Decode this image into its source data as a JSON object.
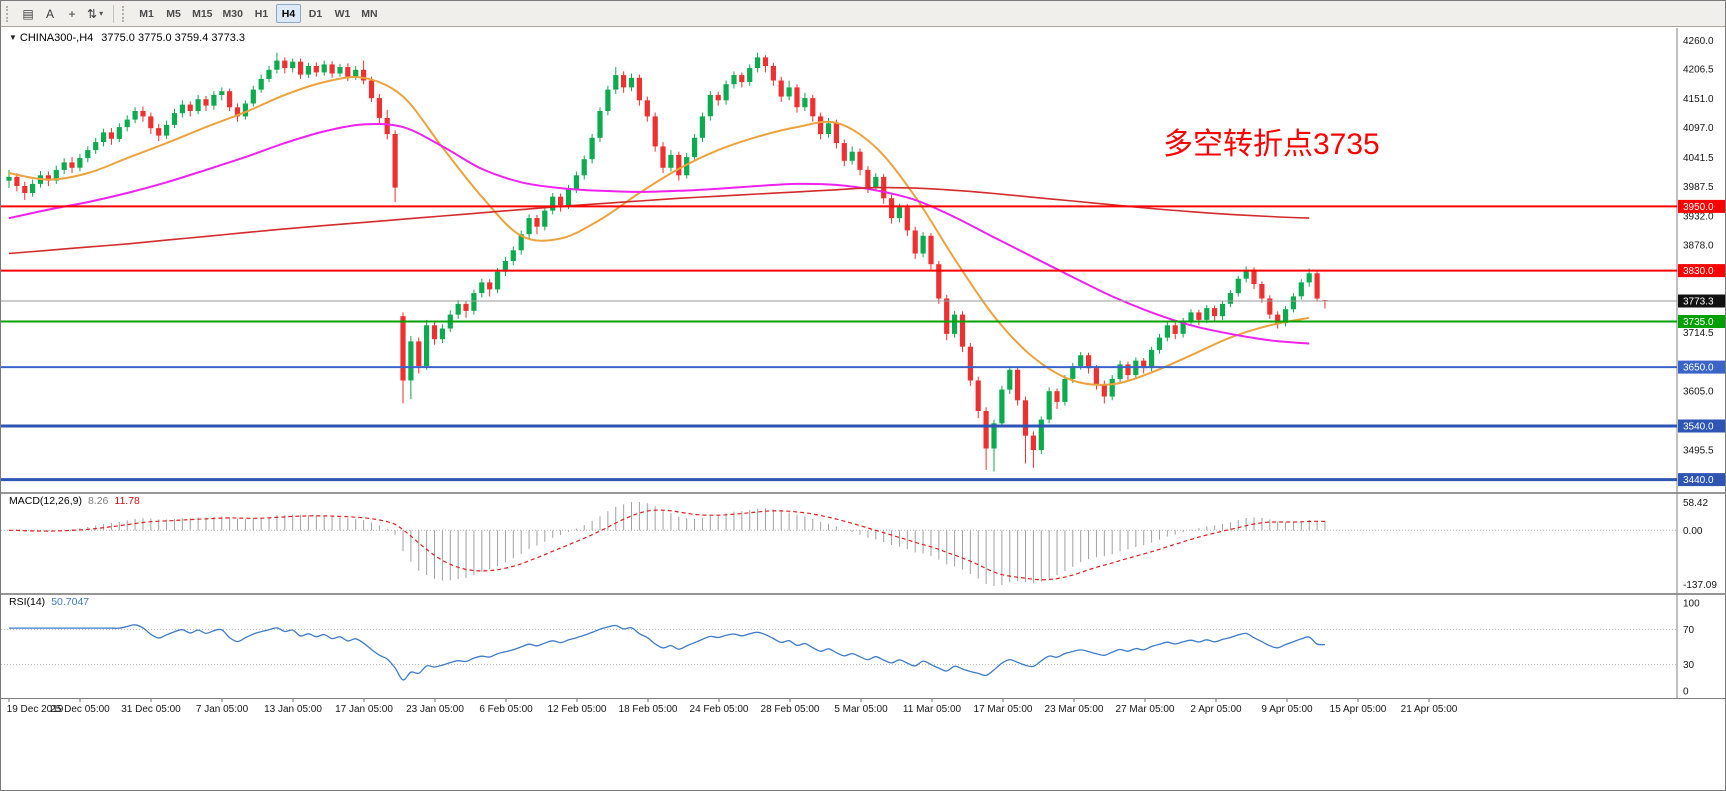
{
  "toolbar": {
    "icons": [
      {
        "name": "charts-grid-icon",
        "glyph": "▤"
      },
      {
        "name": "cursor-text-icon",
        "glyph": "A"
      },
      {
        "name": "crosshair-icon",
        "glyph": "+"
      },
      {
        "name": "order-arrows-icon",
        "glyph": "⇅"
      }
    ],
    "dropdown_caret": "▾",
    "timeframes": [
      "M1",
      "M5",
      "M15",
      "M30",
      "H1",
      "H4",
      "D1",
      "W1",
      "MN"
    ],
    "active_timeframe": "H4"
  },
  "header": {
    "collapse_arrow": "▼",
    "symbol_period": "CHINA300-,H4",
    "ohlc": "3775.0 3775.0 3759.4 3773.3"
  },
  "chart_data": {
    "type": "candlestick",
    "symbol": "CHINA300-",
    "timeframe": "H4",
    "last_ohlc": {
      "open": 3775.0,
      "high": 3775.0,
      "low": 3759.4,
      "close": 3773.3
    },
    "ylim": [
      3428,
      4268
    ],
    "price_axis_labels": [
      "4260.0",
      "4206.5",
      "4151.0",
      "4097.0",
      "4041.5",
      "3987.5",
      "3932.0",
      "3878.0",
      "3714.5",
      "3605.0",
      "3495.5"
    ],
    "x_tick_labels": [
      "19 Dec 2019",
      "25 Dec 05:00",
      "31 Dec 05:00",
      "7 Jan 05:00",
      "13 Jan 05:00",
      "17 Jan 05:00",
      "23 Jan 05:00",
      "6 Feb 05:00",
      "12 Feb 05:00",
      "18 Feb 05:00",
      "24 Feb 05:00",
      "28 Feb 05:00",
      "5 Mar 05:00",
      "11 Mar 05:00",
      "17 Mar 05:00",
      "23 Mar 05:00",
      "27 Mar 05:00",
      "2 Apr 05:00",
      "9 Apr 05:00",
      "15 Apr 05:00",
      "21 Apr 05:00"
    ],
    "annotation": {
      "text": "多空转折点3735",
      "color": "#FF0000"
    },
    "candle_colors": {
      "up": "#0cab4f",
      "down": "#ef3030"
    },
    "horizontal_lines": [
      {
        "price": 3950.0,
        "label": "3950.0",
        "color": "#ff0000",
        "width": 2
      },
      {
        "price": 3830.0,
        "label": "3830.0",
        "color": "#ff0000",
        "width": 2
      },
      {
        "price": 3735.0,
        "label": "3735.0",
        "color": "#00a000",
        "width": 2
      },
      {
        "price": 3650.0,
        "label": "3650.0",
        "color": "#3a64c8",
        "width": 2
      },
      {
        "price": 3540.0,
        "label": "3540.0",
        "color": "#2e55b4",
        "width": 3
      },
      {
        "price": 3440.0,
        "label": "3440.0",
        "color": "#2e55b4",
        "width": 3
      }
    ],
    "current_price": {
      "price": 3773.3,
      "label": "3773.3",
      "line_color": "#9a9a9a",
      "badge_color": "#111111"
    },
    "moving_averages": [
      {
        "name": "ma-fast-orange",
        "color": "#eda23d",
        "width": 2,
        "sample_step": 5,
        "values": [
          4012,
          4000,
          4012,
          4040,
          4068,
          4098,
          4126,
          4158,
          4182,
          4190,
          4155,
          4060,
          3968,
          3895,
          3890,
          3925,
          3975,
          4020,
          4055,
          4080,
          4098,
          4106,
          4060,
          3968,
          3852,
          3745,
          3668,
          3625,
          3618,
          3640,
          3672,
          3705,
          3728,
          3742
        ]
      },
      {
        "name": "ma-mid-magenta",
        "color": "#f022f0",
        "width": 2,
        "sample_step": 5,
        "values": [
          3928,
          3944,
          3958,
          3975,
          3995,
          4018,
          4042,
          4068,
          4090,
          4103,
          4098,
          4062,
          4020,
          3995,
          3984,
          3979,
          3977,
          3979,
          3983,
          3988,
          3992,
          3990,
          3980,
          3962,
          3930,
          3892,
          3855,
          3818,
          3782,
          3752,
          3728,
          3712,
          3700,
          3694
        ]
      },
      {
        "name": "ma-slow-red",
        "color": "#d42a2a",
        "width": 1.6,
        "sample_step": 5,
        "values": [
          3862,
          3868,
          3874,
          3880,
          3887,
          3894,
          3901,
          3908,
          3914,
          3920,
          3926,
          3932,
          3938,
          3944,
          3950,
          3955,
          3960,
          3965,
          3969,
          3973,
          3977,
          3981,
          3985,
          3984,
          3980,
          3974,
          3967,
          3960,
          3953,
          3946,
          3940,
          3935,
          3931,
          3928
        ]
      }
    ],
    "candles": [
      [
        3998,
        4018,
        3984,
        4005
      ],
      [
        4005,
        4012,
        3978,
        3988
      ],
      [
        3988,
        3996,
        3962,
        3975
      ],
      [
        3975,
        4000,
        3968,
        3992
      ],
      [
        3992,
        4016,
        3985,
        4008
      ],
      [
        4008,
        4015,
        3988,
        3998
      ],
      [
        3998,
        4026,
        3992,
        4018
      ],
      [
        4018,
        4040,
        4010,
        4032
      ],
      [
        4032,
        4042,
        4012,
        4022
      ],
      [
        4022,
        4048,
        4015,
        4040
      ],
      [
        4040,
        4062,
        4032,
        4055
      ],
      [
        4055,
        4078,
        4048,
        4070
      ],
      [
        4070,
        4095,
        4062,
        4088
      ],
      [
        4088,
        4096,
        4065,
        4076
      ],
      [
        4076,
        4105,
        4070,
        4098
      ],
      [
        4098,
        4120,
        4090,
        4112
      ],
      [
        4112,
        4135,
        4105,
        4128
      ],
      [
        4128,
        4136,
        4108,
        4118
      ],
      [
        4118,
        4125,
        4085,
        4096
      ],
      [
        4096,
        4104,
        4072,
        4082
      ],
      [
        4082,
        4110,
        4076,
        4102
      ],
      [
        4102,
        4132,
        4096,
        4124
      ],
      [
        4124,
        4148,
        4116,
        4140
      ],
      [
        4140,
        4146,
        4118,
        4128
      ],
      [
        4128,
        4158,
        4122,
        4150
      ],
      [
        4150,
        4156,
        4128,
        4138
      ],
      [
        4138,
        4165,
        4130,
        4158
      ],
      [
        4158,
        4172,
        4148,
        4165
      ],
      [
        4165,
        4170,
        4128,
        4135
      ],
      [
        4135,
        4142,
        4108,
        4118
      ],
      [
        4118,
        4148,
        4112,
        4142
      ],
      [
        4142,
        4175,
        4136,
        4168
      ],
      [
        4168,
        4196,
        4162,
        4188
      ],
      [
        4188,
        4212,
        4182,
        4205
      ],
      [
        4205,
        4237,
        4198,
        4222
      ],
      [
        4222,
        4228,
        4198,
        4208
      ],
      [
        4208,
        4226,
        4200,
        4220
      ],
      [
        4220,
        4226,
        4188,
        4196
      ],
      [
        4196,
        4218,
        4190,
        4212
      ],
      [
        4212,
        4219,
        4192,
        4200
      ],
      [
        4200,
        4222,
        4194,
        4215
      ],
      [
        4215,
        4221,
        4190,
        4198
      ],
      [
        4198,
        4216,
        4192,
        4210
      ],
      [
        4210,
        4217,
        4184,
        4192
      ],
      [
        4192,
        4212,
        4186,
        4205
      ],
      [
        4205,
        4222,
        4178,
        4185
      ],
      [
        4185,
        4192,
        4145,
        4152
      ],
      [
        4152,
        4160,
        4105,
        4115
      ],
      [
        4115,
        4130,
        4075,
        4085
      ],
      [
        4085,
        4092,
        3958,
        3985
      ],
      [
        3745,
        3752,
        3582,
        3625
      ],
      [
        3625,
        3708,
        3590,
        3698
      ],
      [
        3698,
        3705,
        3638,
        3652
      ],
      [
        3652,
        3738,
        3645,
        3728
      ],
      [
        3728,
        3735,
        3692,
        3702
      ],
      [
        3702,
        3730,
        3695,
        3722
      ],
      [
        3722,
        3756,
        3715,
        3748
      ],
      [
        3748,
        3775,
        3740,
        3768
      ],
      [
        3768,
        3774,
        3742,
        3755
      ],
      [
        3755,
        3795,
        3748,
        3788
      ],
      [
        3788,
        3815,
        3780,
        3808
      ],
      [
        3808,
        3814,
        3782,
        3795
      ],
      [
        3795,
        3835,
        3788,
        3828
      ],
      [
        3828,
        3856,
        3820,
        3848
      ],
      [
        3848,
        3875,
        3840,
        3868
      ],
      [
        3868,
        3905,
        3860,
        3898
      ],
      [
        3898,
        3935,
        3890,
        3928
      ],
      [
        3928,
        3934,
        3898,
        3912
      ],
      [
        3912,
        3950,
        3905,
        3942
      ],
      [
        3942,
        3975,
        3935,
        3968
      ],
      [
        3968,
        3974,
        3940,
        3952
      ],
      [
        3952,
        3990,
        3945,
        3982
      ],
      [
        3982,
        4015,
        3975,
        4008
      ],
      [
        4008,
        4045,
        4000,
        4038
      ],
      [
        4038,
        4085,
        4030,
        4078
      ],
      [
        4078,
        4135,
        4070,
        4128
      ],
      [
        4128,
        4175,
        4120,
        4168
      ],
      [
        4168,
        4210,
        4160,
        4195
      ],
      [
        4195,
        4202,
        4162,
        4172
      ],
      [
        4172,
        4198,
        4165,
        4190
      ],
      [
        4190,
        4196,
        4138,
        4148
      ],
      [
        4148,
        4155,
        4108,
        4118
      ],
      [
        4118,
        4125,
        4052,
        4062
      ],
      [
        4062,
        4070,
        4012,
        4022
      ],
      [
        4022,
        4055,
        4015,
        4046
      ],
      [
        4046,
        4052,
        3998,
        4008
      ],
      [
        4008,
        4050,
        4002,
        4042
      ],
      [
        4042,
        4085,
        4035,
        4078
      ],
      [
        4078,
        4125,
        4070,
        4118
      ],
      [
        4118,
        4165,
        4110,
        4158
      ],
      [
        4158,
        4164,
        4138,
        4148
      ],
      [
        4148,
        4185,
        4140,
        4178
      ],
      [
        4178,
        4202,
        4170,
        4195
      ],
      [
        4195,
        4200,
        4172,
        4182
      ],
      [
        4182,
        4215,
        4175,
        4208
      ],
      [
        4208,
        4237,
        4200,
        4228
      ],
      [
        4228,
        4232,
        4200,
        4212
      ],
      [
        4212,
        4218,
        4175,
        4185
      ],
      [
        4185,
        4192,
        4145,
        4155
      ],
      [
        4155,
        4185,
        4148,
        4172
      ],
      [
        4172,
        4178,
        4125,
        4135
      ],
      [
        4135,
        4162,
        4128,
        4152
      ],
      [
        4152,
        4158,
        4108,
        4118
      ],
      [
        4118,
        4125,
        4075,
        4085
      ],
      [
        4085,
        4115,
        4078,
        4105
      ],
      [
        4105,
        4112,
        4058,
        4068
      ],
      [
        4068,
        4075,
        4025,
        4035
      ],
      [
        4035,
        4062,
        4028,
        4052
      ],
      [
        4052,
        4058,
        4008,
        4018
      ],
      [
        4018,
        4025,
        3975,
        3985
      ],
      [
        3985,
        4012,
        3978,
        4005
      ],
      [
        4005,
        4010,
        3955,
        3965
      ],
      [
        3965,
        3972,
        3918,
        3928
      ],
      [
        3928,
        3955,
        3920,
        3948
      ],
      [
        3948,
        3954,
        3895,
        3905
      ],
      [
        3905,
        3912,
        3852,
        3862
      ],
      [
        3862,
        3902,
        3855,
        3895
      ],
      [
        3895,
        3900,
        3832,
        3842
      ],
      [
        3842,
        3848,
        3768,
        3778
      ],
      [
        3778,
        3785,
        3700,
        3712
      ],
      [
        3712,
        3755,
        3705,
        3748
      ],
      [
        3748,
        3754,
        3678,
        3688
      ],
      [
        3688,
        3695,
        3615,
        3625
      ],
      [
        3625,
        3632,
        3555,
        3568
      ],
      [
        3568,
        3575,
        3458,
        3498
      ],
      [
        3498,
        3552,
        3455,
        3545
      ],
      [
        3545,
        3615,
        3538,
        3608
      ],
      [
        3608,
        3652,
        3600,
        3645
      ],
      [
        3645,
        3650,
        3578,
        3588
      ],
      [
        3588,
        3595,
        3470,
        3522
      ],
      [
        3522,
        3530,
        3462,
        3495
      ],
      [
        3495,
        3558,
        3488,
        3552
      ],
      [
        3552,
        3612,
        3545,
        3605
      ],
      [
        3605,
        3610,
        3572,
        3585
      ],
      [
        3585,
        3635,
        3578,
        3628
      ],
      [
        3628,
        3658,
        3620,
        3652
      ],
      [
        3652,
        3678,
        3645,
        3672
      ],
      [
        3672,
        3677,
        3638,
        3648
      ],
      [
        3648,
        3654,
        3608,
        3618
      ],
      [
        3618,
        3625,
        3582,
        3595
      ],
      [
        3595,
        3635,
        3588,
        3628
      ],
      [
        3628,
        3662,
        3622,
        3655
      ],
      [
        3655,
        3660,
        3625,
        3635
      ],
      [
        3635,
        3668,
        3628,
        3662
      ],
      [
        3662,
        3667,
        3638,
        3648
      ],
      [
        3648,
        3688,
        3642,
        3682
      ],
      [
        3682,
        3712,
        3675,
        3705
      ],
      [
        3705,
        3735,
        3698,
        3728
      ],
      [
        3728,
        3733,
        3702,
        3712
      ],
      [
        3712,
        3742,
        3705,
        3735
      ],
      [
        3735,
        3758,
        3728,
        3752
      ],
      [
        3752,
        3757,
        3728,
        3738
      ],
      [
        3738,
        3766,
        3732,
        3760
      ],
      [
        3760,
        3765,
        3736,
        3745
      ],
      [
        3745,
        3774,
        3738,
        3768
      ],
      [
        3768,
        3794,
        3762,
        3788
      ],
      [
        3788,
        3820,
        3782,
        3815
      ],
      [
        3815,
        3838,
        3808,
        3832
      ],
      [
        3832,
        3836,
        3796,
        3805
      ],
      [
        3805,
        3810,
        3770,
        3778
      ],
      [
        3778,
        3784,
        3740,
        3748
      ],
      [
        3748,
        3754,
        3722,
        3732
      ],
      [
        3732,
        3764,
        3726,
        3758
      ],
      [
        3758,
        3788,
        3752,
        3782
      ],
      [
        3782,
        3814,
        3776,
        3808
      ],
      [
        3808,
        3834,
        3800,
        3825
      ],
      [
        3825,
        3830,
        3772,
        3778
      ],
      [
        3775,
        3775,
        3759.4,
        3773.3
      ]
    ],
    "indicators": [
      {
        "type": "MACD",
        "params": [
          12,
          26,
          9
        ],
        "display": "MACD(12,26,9)",
        "values": [
          "8.26",
          "11.78"
        ],
        "axis_labels": [
          "58.42",
          "0.00",
          "-137.09"
        ],
        "histogram_color": "#a0a0a0",
        "signal_color": "#e02020"
      },
      {
        "type": "RSI",
        "params": [
          14
        ],
        "display": "RSI(14)",
        "value": "50.7047",
        "axis_labels": [
          "100",
          "70",
          "30",
          "0"
        ],
        "levels": [
          70,
          30
        ],
        "line_color": "#3e7bc8"
      }
    ]
  }
}
